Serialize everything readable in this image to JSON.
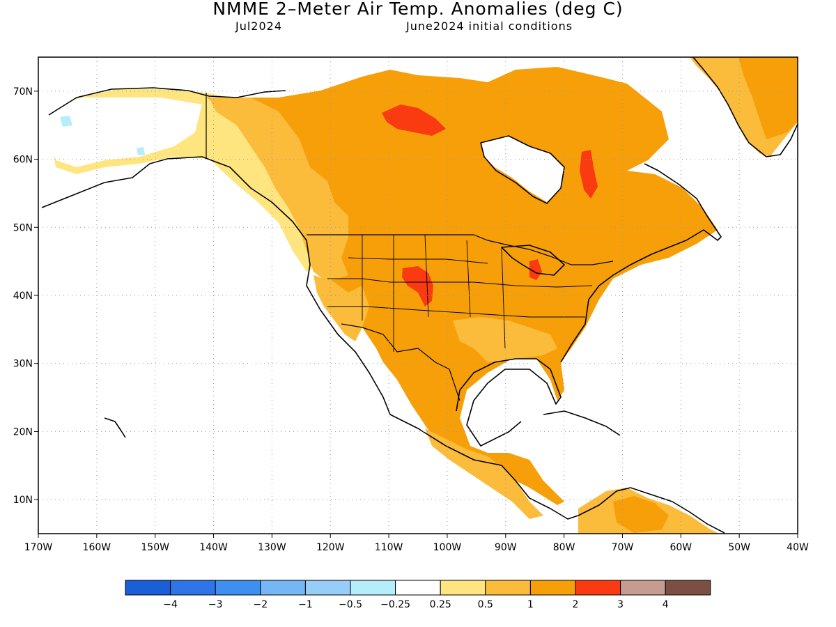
{
  "header": {
    "title": "NMME 2–Meter Air Temp. Anomalies (deg C)",
    "subtitle_left": "Jul2024",
    "subtitle_right": "June2024 initial conditions"
  },
  "axes": {
    "lat_labels": [
      "70N",
      "60N",
      "50N",
      "40N",
      "30N",
      "20N",
      "10N"
    ],
    "lon_labels": [
      "170W",
      "160W",
      "150W",
      "140W",
      "130W",
      "120W",
      "110W",
      "100W",
      "90W",
      "80W",
      "70W",
      "60W",
      "50W",
      "40W"
    ],
    "lat_range": [
      5,
      75
    ],
    "lon_range": [
      -170,
      -40
    ],
    "grid": "dotted"
  },
  "colorbar": {
    "colors": [
      "#1a5fd6",
      "#2e75e8",
      "#3d8ff0",
      "#75b6f5",
      "#97cef8",
      "#b4eefa",
      "#ffffff",
      "#ffe57f",
      "#fbbb3b",
      "#f79f08",
      "#fa3a10",
      "#c49c90",
      "#7b4f43"
    ],
    "labels": [
      "−4",
      "−3",
      "−2",
      "−1",
      "−0.5",
      "−0.25",
      "0.25",
      "0.5",
      "1",
      "2",
      "3",
      "4"
    ]
  },
  "legend_classes": {
    "ocean": "#ffffff",
    "weak_warm": "#ffe57f",
    "moderate_warm": "#fbbb3b",
    "strong_warm": "#f79f08",
    "very_strong_warm": "#fa3a10",
    "slight_cool": "#b4eefa"
  }
}
